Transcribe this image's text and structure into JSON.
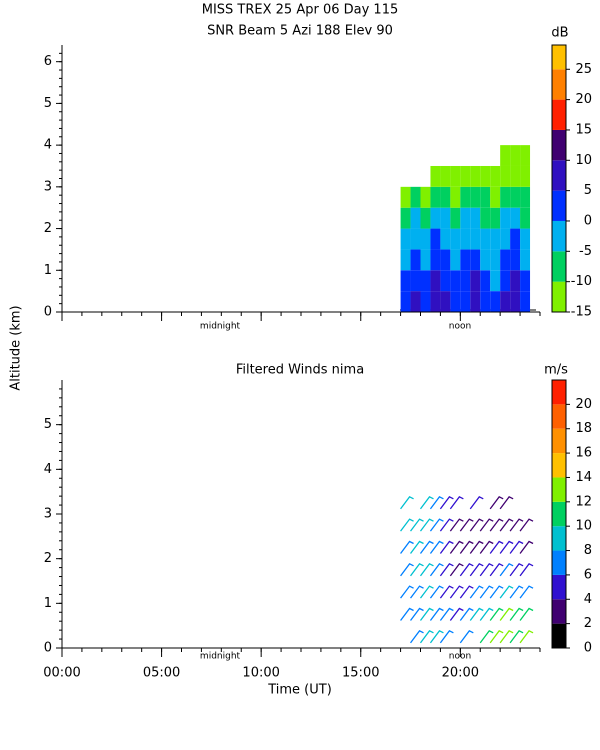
{
  "chart_data": [
    {
      "type": "heatmap",
      "title": "MISS TREX   25 Apr 06 Day 115",
      "subtitle": "SNR Beam 5 Azi 188 Elev 90",
      "colorbar_label": "dB",
      "annotations": [
        "midnight",
        "noon"
      ],
      "xlim": [
        0,
        24
      ],
      "xticks": [
        0,
        5,
        10,
        15,
        20
      ],
      "ylim": [
        0,
        6.4
      ],
      "yticks": [
        0,
        1,
        2,
        3,
        4,
        5,
        6
      ],
      "clim": [
        -15,
        29
      ],
      "cticks": [
        -15,
        -10,
        -5,
        0,
        5,
        10,
        15,
        20,
        25
      ],
      "colors": [
        "#80f000",
        "#00d060",
        "#00b0f0",
        "#0030ff",
        "#3010c0",
        "#400070",
        "#ff2000",
        "#ff8000",
        "#ffc000"
      ],
      "x": [
        17.25,
        17.75,
        18.25,
        18.75,
        19.25,
        19.75,
        20.25,
        20.75,
        21.25,
        21.75,
        22.25,
        22.75,
        23.25
      ],
      "y": [
        0.25,
        0.75,
        1.25,
        1.75,
        2.25,
        2.75,
        3.25,
        3.75
      ],
      "values": [
        [
          3,
          6,
          4,
          8,
          5,
          2,
          4,
          6,
          3,
          1,
          5,
          7,
          2
        ],
        [
          2,
          4,
          1,
          6,
          3,
          0,
          2,
          5,
          1,
          -1,
          3,
          6,
          0
        ],
        [
          -1,
          2,
          -2,
          3,
          1,
          -3,
          0,
          2,
          -1,
          -3,
          1,
          3,
          -2
        ],
        [
          -3,
          -1,
          -4,
          0,
          -2,
          -5,
          -2,
          -1,
          -3,
          -5,
          -2,
          0,
          -4
        ],
        [
          -6,
          -4,
          -7,
          -3,
          -5,
          -8,
          -4,
          -3,
          -6,
          -7,
          -4,
          -3,
          -6
        ],
        [
          -11,
          -9,
          -12,
          -8,
          -10,
          -12,
          -9,
          -8,
          -10,
          -11,
          -9,
          -8,
          -10
        ],
        [
          null,
          null,
          null,
          -13,
          -12,
          -13,
          -12,
          -11,
          -12,
          -13,
          -12,
          -11,
          -12
        ],
        [
          null,
          null,
          null,
          null,
          null,
          null,
          null,
          null,
          null,
          null,
          -13,
          -13,
          -13
        ]
      ]
    },
    {
      "type": "barbs",
      "title": "Filtered Winds nima",
      "colorbar_label": "m/s",
      "annotations": [
        "midnight",
        "noon"
      ],
      "x_label": "Time (UT)",
      "y_label": "Altitude (km)",
      "xlim": [
        0,
        24
      ],
      "xticks": [
        {
          "value": 0,
          "label": "00:00"
        },
        {
          "value": 5,
          "label": "05:00"
        },
        {
          "value": 10,
          "label": "10:00"
        },
        {
          "value": 15,
          "label": "15:00"
        },
        {
          "value": 20,
          "label": "20:00"
        }
      ],
      "ylim": [
        0,
        6
      ],
      "yticks": [
        0,
        1,
        2,
        3,
        4,
        5
      ],
      "clim": [
        0,
        22
      ],
      "cticks": [
        0,
        2,
        4,
        6,
        8,
        10,
        12,
        14,
        16,
        18,
        20
      ],
      "colors": [
        "#000000",
        "#400070",
        "#3010d0",
        "#0080ff",
        "#00c0d0",
        "#00d060",
        "#80f000",
        "#ffc000",
        "#ff9000",
        "#ff6000",
        "#ff2000"
      ],
      "x": [
        17.25,
        17.75,
        18.25,
        18.75,
        19.25,
        19.75,
        20.25,
        20.75,
        21.25,
        21.75,
        22.25,
        22.75,
        23.25
      ],
      "y": [
        0.25,
        0.75,
        1.25,
        1.75,
        2.25,
        2.75,
        3.25
      ],
      "values": [
        [
          null,
          7,
          8,
          9,
          7,
          null,
          6,
          null,
          10,
          12,
          13,
          11,
          12
        ],
        [
          6,
          7,
          8,
          7,
          6,
          5,
          6,
          8,
          9,
          11,
          12,
          10,
          11
        ],
        [
          6,
          7,
          8,
          7,
          5,
          4,
          5,
          6,
          6,
          7,
          8,
          7,
          6
        ],
        [
          7,
          8,
          8,
          6,
          4,
          3,
          4,
          4,
          5,
          5,
          6,
          5,
          4
        ],
        [
          7,
          8,
          7,
          6,
          4,
          3,
          3,
          3,
          3,
          4,
          4,
          4,
          3
        ],
        [
          8,
          9,
          8,
          6,
          5,
          3,
          3,
          3,
          3,
          3,
          3,
          3,
          3
        ],
        [
          9,
          null,
          9,
          7,
          5,
          4,
          null,
          4,
          null,
          3,
          3,
          null,
          null
        ]
      ]
    }
  ]
}
